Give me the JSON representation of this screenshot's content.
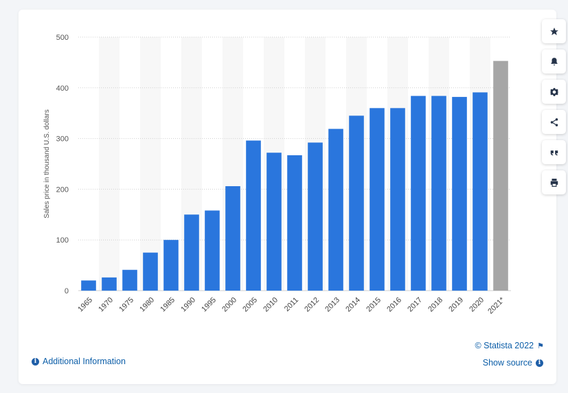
{
  "chart_data": {
    "type": "bar",
    "ylabel": "Sales price in thousand U.S. dollars",
    "ylim": [
      0,
      500
    ],
    "yticks": [
      0,
      100,
      200,
      300,
      400,
      500
    ],
    "grid": true,
    "categories": [
      "1965",
      "1970",
      "1975",
      "1980",
      "1985",
      "1990",
      "1995",
      "2000",
      "2005",
      "2010",
      "2011",
      "2012",
      "2013",
      "2014",
      "2015",
      "2016",
      "2017",
      "2018",
      "2019",
      "2020",
      "2021*"
    ],
    "values": [
      20,
      26,
      41,
      75,
      100,
      150,
      158,
      206,
      296,
      272,
      267,
      292,
      319,
      345,
      360,
      360,
      384,
      384,
      382,
      391,
      453
    ],
    "bar_colors": {
      "primary": "#2a76dd",
      "highlight": "#a6a6a6"
    },
    "highlight_index": 20
  },
  "sidebar": {
    "buttons": [
      {
        "name": "favorite-button",
        "icon": "star-icon"
      },
      {
        "name": "notification-button",
        "icon": "bell-icon"
      },
      {
        "name": "settings-button",
        "icon": "gear-icon"
      },
      {
        "name": "share-button",
        "icon": "share-icon"
      },
      {
        "name": "cite-button",
        "icon": "quote-icon"
      },
      {
        "name": "print-button",
        "icon": "printer-icon"
      }
    ]
  },
  "footer": {
    "copyright": "© Statista 2022",
    "additional_info": "Additional Information",
    "show_source": "Show source"
  }
}
